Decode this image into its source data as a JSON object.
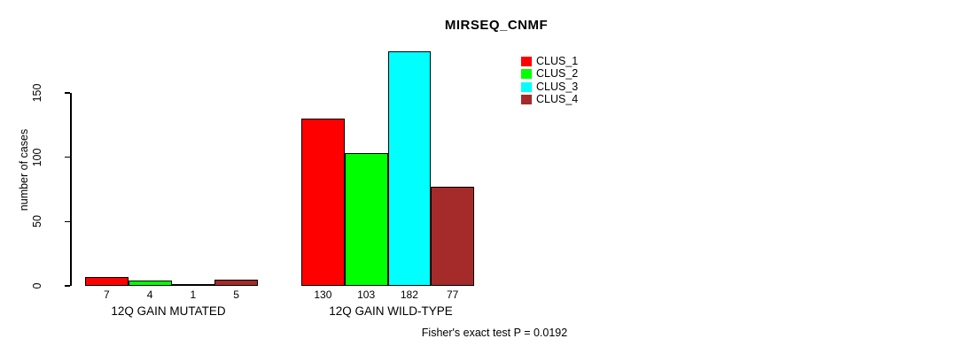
{
  "chart_data": {
    "type": "bar",
    "title": "MIRSEQ_CNMF",
    "ylabel": "number of cases",
    "xlabel": "",
    "groups": [
      "12Q GAIN MUTATED",
      "12Q GAIN WILD-TYPE"
    ],
    "series": [
      {
        "name": "CLUS_1",
        "color": "#ff0000",
        "values": [
          7,
          130
        ]
      },
      {
        "name": "CLUS_2",
        "color": "#00ff00",
        "values": [
          4,
          103
        ]
      },
      {
        "name": "CLUS_3",
        "color": "#00ffff",
        "values": [
          1,
          182
        ]
      },
      {
        "name": "CLUS_4",
        "color": "#a52a2a",
        "values": [
          5,
          77
        ]
      }
    ],
    "yticks": [
      0,
      50,
      100,
      150
    ],
    "ylim": [
      0,
      190
    ],
    "grid": false,
    "legend_position": "top-right",
    "footnote": "Fisher's exact test P = 0.0192"
  }
}
